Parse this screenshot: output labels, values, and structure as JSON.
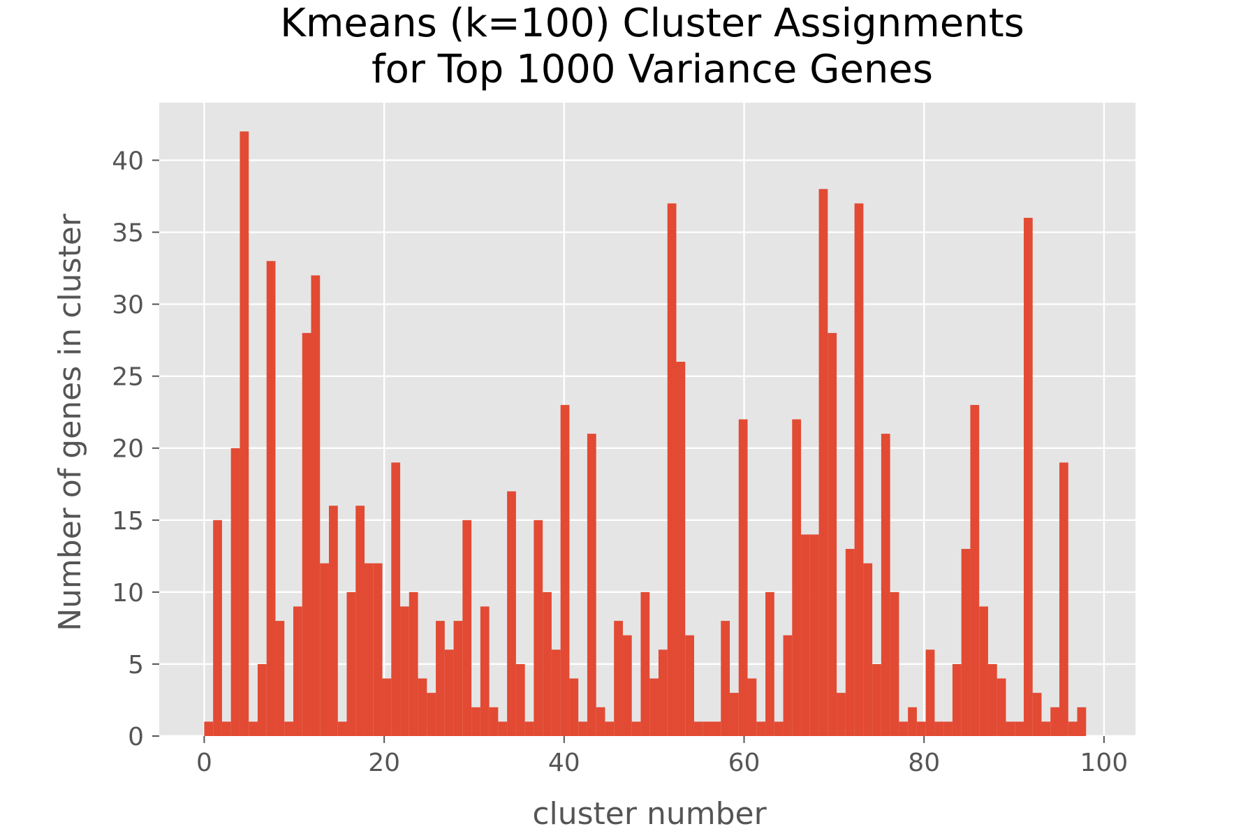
{
  "chart_data": {
    "type": "bar",
    "title": [
      "Kmeans (k=100) Cluster Assignments",
      "for Top 1000 Variance Genes"
    ],
    "xlabel": "cluster number",
    "ylabel": "Number of genes in cluster",
    "xlim": [
      -5,
      103.5
    ],
    "ylim": [
      0,
      44
    ],
    "xticks": [
      0,
      20,
      40,
      60,
      80,
      100
    ],
    "yticks": [
      0,
      5,
      10,
      15,
      20,
      25,
      30,
      35,
      40
    ],
    "grid": true,
    "bar_color": "#E24A33",
    "background_color": "#E5E5E5",
    "grid_color": "#FFFFFF",
    "bin_width": 0.99,
    "values": [
      1,
      15,
      1,
      20,
      42,
      1,
      5,
      33,
      8,
      1,
      9,
      28,
      32,
      12,
      16,
      1,
      10,
      16,
      12,
      12,
      4,
      19,
      9,
      10,
      4,
      3,
      8,
      6,
      8,
      15,
      2,
      9,
      2,
      1,
      17,
      5,
      1,
      15,
      10,
      6,
      23,
      4,
      1,
      21,
      2,
      1,
      8,
      7,
      1,
      10,
      4,
      6,
      37,
      26,
      7,
      1,
      1,
      1,
      8,
      3,
      22,
      4,
      1,
      10,
      1,
      7,
      22,
      14,
      14,
      38,
      28,
      3,
      13,
      37,
      12,
      5,
      21,
      10,
      1,
      2,
      1,
      6,
      1,
      1,
      5,
      13,
      23,
      9,
      5,
      4,
      1,
      1,
      36,
      3,
      1,
      2,
      19,
      1,
      2
    ]
  }
}
